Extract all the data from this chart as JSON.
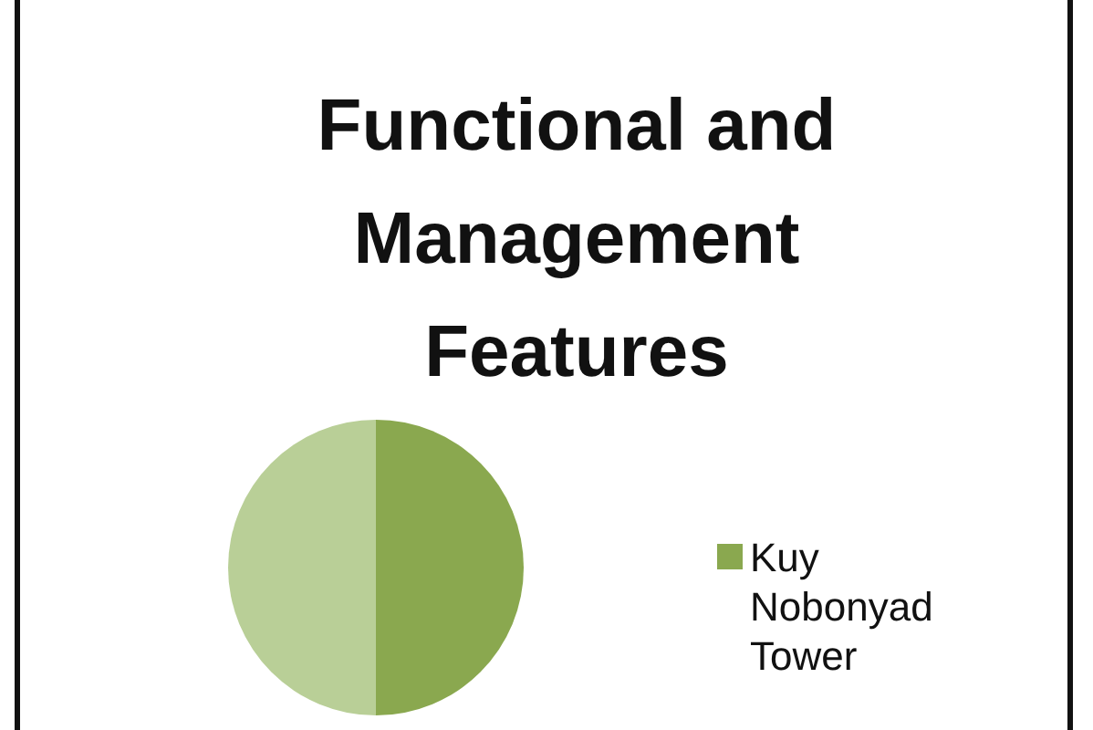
{
  "chart_data": {
    "type": "pie",
    "title": "Functional and Management Features",
    "categories": [
      "Kuy Nobonyad Tower",
      null
    ],
    "values": [
      50,
      50
    ],
    "colors": [
      "#8aa84f",
      "#b9cf97"
    ],
    "legend": "right"
  }
}
